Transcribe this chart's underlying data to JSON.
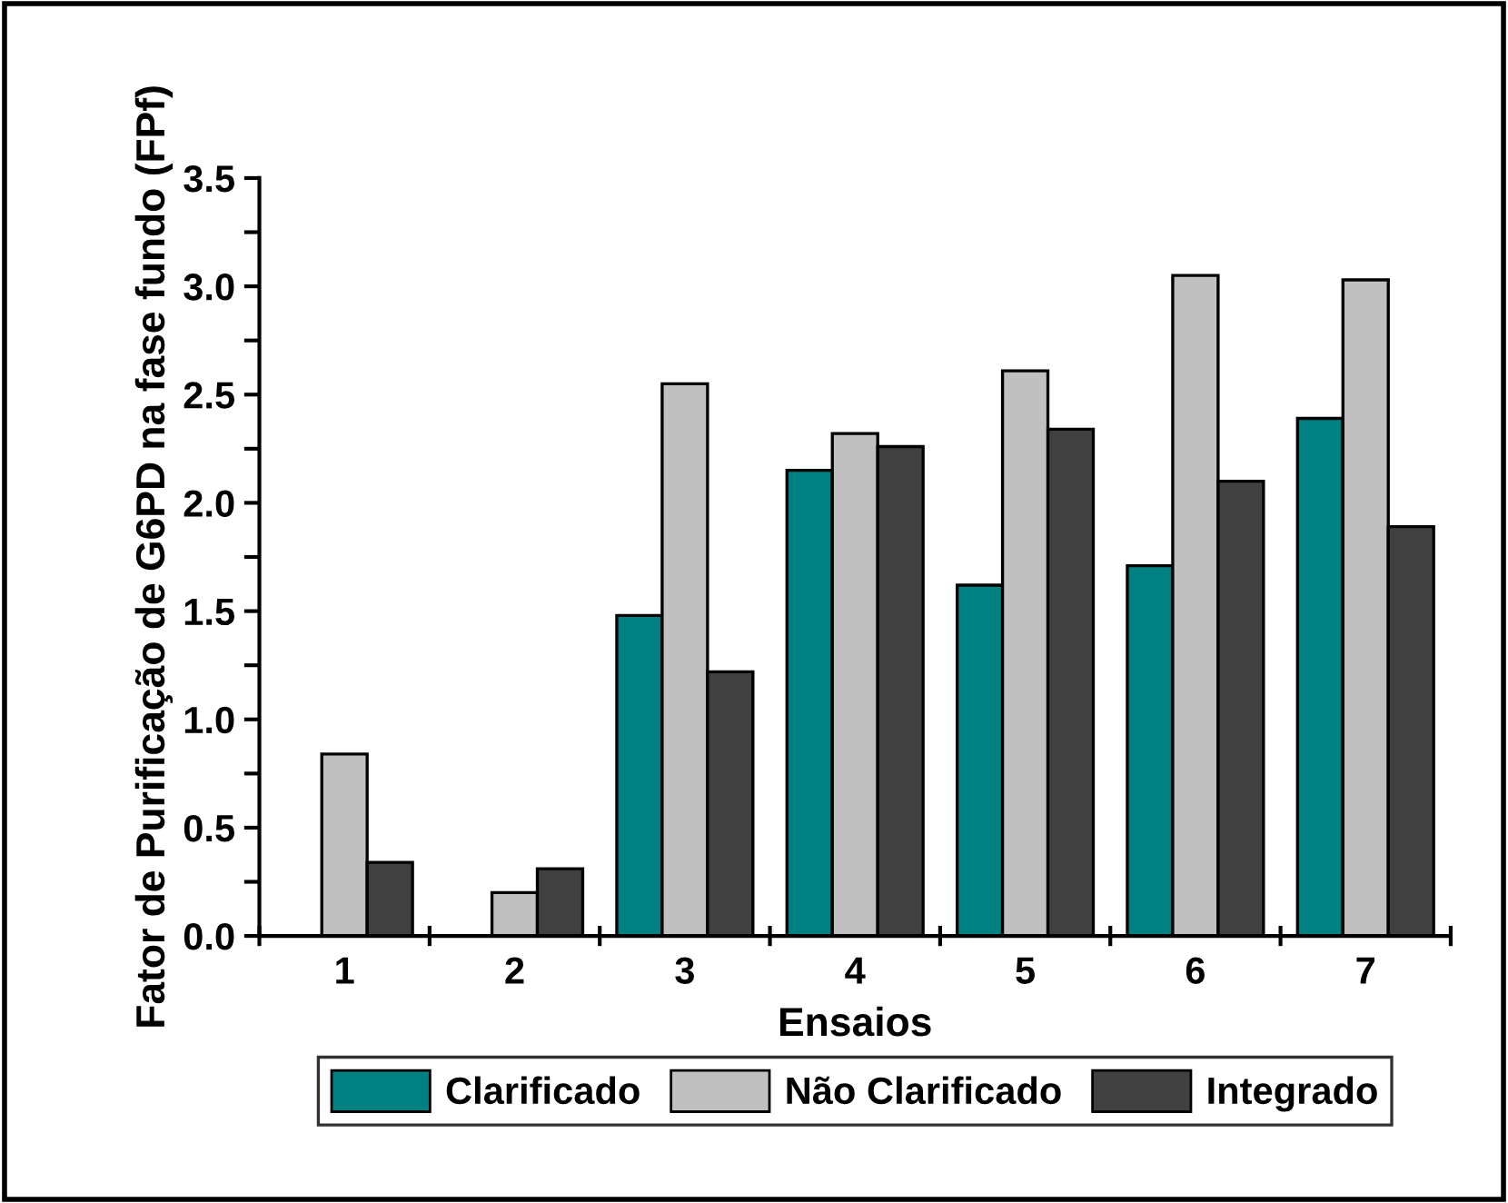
{
  "chart_data": {
    "type": "bar",
    "xlabel": "Ensaios",
    "ylabel": "Fator de Purificação de G6PD na fase fundo (FPf)",
    "categories": [
      "1",
      "2",
      "3",
      "4",
      "5",
      "6",
      "7"
    ],
    "series": [
      {
        "name": "Clarificado",
        "color": "#008080",
        "values": [
          null,
          null,
          1.48,
          2.15,
          1.62,
          1.71,
          2.39
        ]
      },
      {
        "name": "Não Clarificado",
        "color": "#c0c0c0",
        "values": [
          0.84,
          0.2,
          2.55,
          2.32,
          2.61,
          3.05,
          3.03
        ]
      },
      {
        "name": "Integrado",
        "color": "#404040",
        "values": [
          0.34,
          0.31,
          1.22,
          2.26,
          2.34,
          2.1,
          1.89
        ]
      }
    ],
    "ylim": [
      0,
      3.5
    ],
    "yticks": [
      {
        "value": 0,
        "label": "0.0"
      },
      {
        "value": 0.25,
        "label": null
      },
      0.5,
      {
        "value": 0.75,
        "label": null
      },
      {
        "value": 1,
        "label": "1.0"
      },
      {
        "value": 1.25,
        "label": null
      },
      1.5,
      {
        "value": 1.75,
        "label": null
      },
      {
        "value": 2,
        "label": "2.0"
      },
      {
        "value": 2.25,
        "label": null
      },
      2.5,
      {
        "value": 2.75,
        "label": null
      },
      {
        "value": 3,
        "label": "3.0"
      },
      {
        "value": 3.25,
        "label": null
      },
      3.5
    ],
    "grid": false,
    "legend": "bottom"
  }
}
